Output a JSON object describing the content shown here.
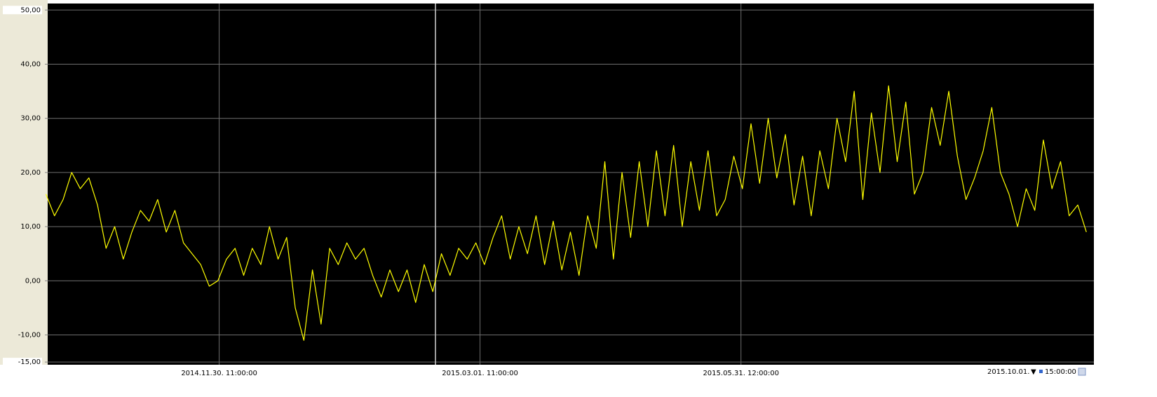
{
  "chart_data": {
    "type": "line",
    "x": [
      "2014.10.01.",
      "2014.10.04.",
      "2014.10.07.",
      "2014.10.10.",
      "2014.10.13.",
      "2014.10.16.",
      "2014.10.19.",
      "2014.10.22.",
      "2014.10.25.",
      "2014.10.28.",
      "2014.10.31.",
      "2014.11.03.",
      "2014.11.06.",
      "2014.11.09.",
      "2014.11.12.",
      "2014.11.15.",
      "2014.11.18.",
      "2014.11.21.",
      "2014.11.24.",
      "2014.11.27.",
      "2014.11.30.",
      "2014.12.03.",
      "2014.12.06.",
      "2014.12.09.",
      "2014.12.12.",
      "2014.12.15.",
      "2014.12.18.",
      "2014.12.21.",
      "2014.12.24.",
      "2014.12.27.",
      "2014.12.30.",
      "2015.01.02.",
      "2015.01.05.",
      "2015.01.08.",
      "2015.01.11.",
      "2015.01.14.",
      "2015.01.17.",
      "2015.01.20.",
      "2015.01.23.",
      "2015.01.26.",
      "2015.01.29.",
      "2015.02.01.",
      "2015.02.04.",
      "2015.02.07.",
      "2015.02.10.",
      "2015.02.13.",
      "2015.02.16.",
      "2015.02.19.",
      "2015.02.22.",
      "2015.02.25.",
      "2015.02.28.",
      "2015.03.03.",
      "2015.03.06.",
      "2015.03.09.",
      "2015.03.12.",
      "2015.03.15.",
      "2015.03.18.",
      "2015.03.21.",
      "2015.03.24.",
      "2015.03.27.",
      "2015.03.30.",
      "2015.04.02.",
      "2015.04.05.",
      "2015.04.08.",
      "2015.04.11.",
      "2015.04.14.",
      "2015.04.17.",
      "2015.04.20.",
      "2015.04.23.",
      "2015.04.26.",
      "2015.04.29.",
      "2015.05.02.",
      "2015.05.05.",
      "2015.05.08.",
      "2015.05.11.",
      "2015.05.14.",
      "2015.05.17.",
      "2015.05.20.",
      "2015.05.23.",
      "2015.05.26.",
      "2015.05.29.",
      "2015.06.01.",
      "2015.06.04.",
      "2015.06.07.",
      "2015.06.10.",
      "2015.06.13.",
      "2015.06.16.",
      "2015.06.19.",
      "2015.06.22.",
      "2015.06.25.",
      "2015.06.28.",
      "2015.07.01.",
      "2015.07.04.",
      "2015.07.07.",
      "2015.07.10.",
      "2015.07.13.",
      "2015.07.16.",
      "2015.07.19.",
      "2015.07.22.",
      "2015.07.25.",
      "2015.07.28.",
      "2015.07.31.",
      "2015.08.03.",
      "2015.08.06.",
      "2015.08.09.",
      "2015.08.12.",
      "2015.08.15.",
      "2015.08.18.",
      "2015.08.21.",
      "2015.08.24.",
      "2015.08.27.",
      "2015.08.30.",
      "2015.09.02.",
      "2015.09.05.",
      "2015.09.08.",
      "2015.09.11.",
      "2015.09.14.",
      "2015.09.17.",
      "2015.09.20.",
      "2015.09.23.",
      "2015.09.26.",
      "2015.09.29."
    ],
    "values": [
      16,
      12,
      15,
      20,
      17,
      19,
      14,
      6,
      10,
      4,
      9,
      13,
      11,
      15,
      9,
      13,
      7,
      5,
      3,
      -1,
      0,
      4,
      6,
      1,
      6,
      3,
      10,
      4,
      8,
      -5,
      -11,
      2,
      -8,
      6,
      3,
      7,
      4,
      6,
      1,
      -3,
      2,
      -2,
      2,
      -4,
      3,
      -2,
      5,
      1,
      6,
      4,
      7,
      3,
      8,
      12,
      4,
      10,
      5,
      12,
      3,
      11,
      2,
      9,
      1,
      12,
      6,
      22,
      4,
      20,
      8,
      22,
      10,
      24,
      12,
      25,
      10,
      22,
      13,
      24,
      12,
      15,
      23,
      17,
      29,
      18,
      30,
      19,
      27,
      14,
      23,
      12,
      24,
      17,
      30,
      22,
      35,
      15,
      31,
      20,
      36,
      22,
      33,
      16,
      20,
      32,
      25,
      35,
      23,
      15,
      19,
      24,
      32,
      20,
      16,
      10,
      17,
      13,
      26,
      17,
      22,
      12,
      14,
      9
    ],
    "color": "#ffff00",
    "xlim": [
      "2014.10.01. 15:00:00",
      "2015.10.01. 15:00:00"
    ],
    "xticks": [
      "2014.11.30. 11:00:00",
      "2015.03.01. 11:00:00",
      "2015.05.31. 12:00:00"
    ],
    "ylim": [
      -15.5,
      51.2
    ],
    "yticks": [
      {
        "value": 50,
        "label": "50,00"
      },
      {
        "value": 40,
        "label": "40,00"
      },
      {
        "value": 30,
        "label": "30,00"
      },
      {
        "value": 20,
        "label": "20,00"
      },
      {
        "value": 10,
        "label": "10,00"
      },
      {
        "value": 0,
        "label": "0,00"
      },
      {
        "value": -10,
        "label": "-10,00"
      },
      {
        "value": -15,
        "label": "-15,00"
      }
    ],
    "grid": true,
    "end_date": "2015.10.01.",
    "end_time": "15:00:00"
  }
}
